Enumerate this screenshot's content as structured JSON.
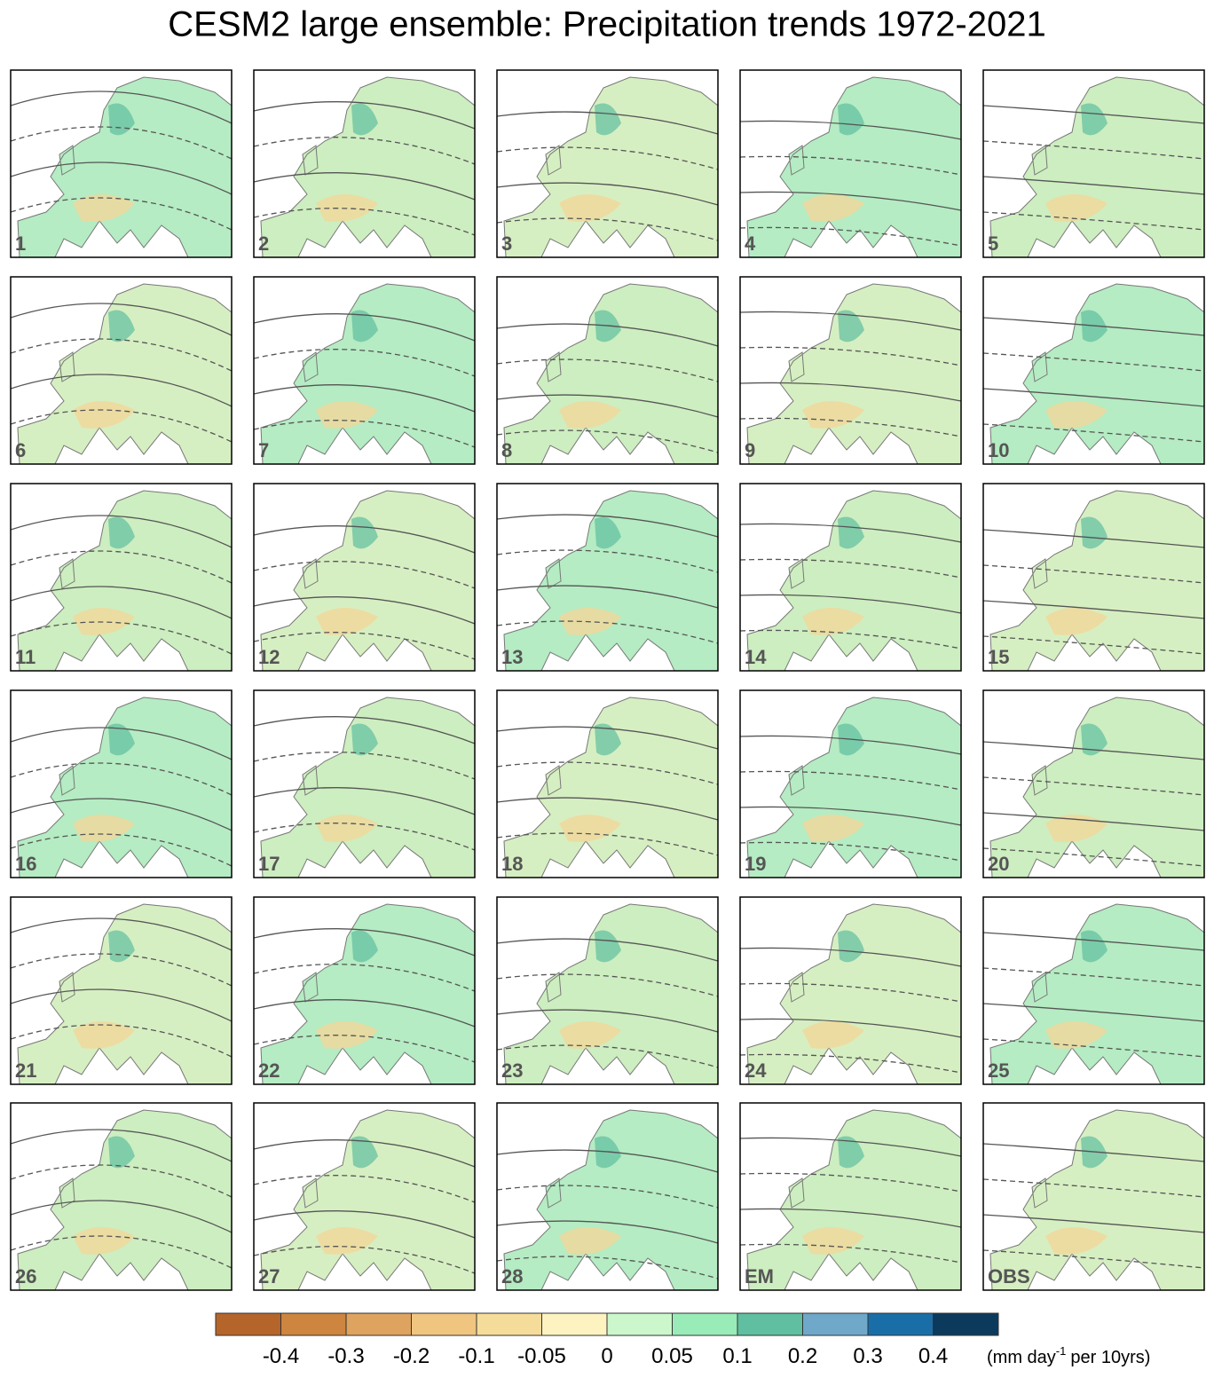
{
  "title": "CESM2 large ensemble: Precipitation trends 1972-2021",
  "panels": [
    "1",
    "2",
    "3",
    "4",
    "5",
    "6",
    "7",
    "8",
    "9",
    "10",
    "11",
    "12",
    "13",
    "14",
    "15",
    "16",
    "17",
    "18",
    "19",
    "20",
    "21",
    "22",
    "23",
    "24",
    "25",
    "26",
    "27",
    "28",
    "EM",
    "OBS"
  ],
  "colorbar": {
    "colors": [
      "#b5652a",
      "#cd8540",
      "#dea35f",
      "#efc57f",
      "#f5dc9a",
      "#fdf3c0",
      "#ccf7cc",
      "#99ebb8",
      "#5fbfa0",
      "#6fa8c9",
      "#1a6ea8",
      "#0b3a5c"
    ],
    "ticks": [
      -0.4,
      -0.3,
      -0.2,
      -0.1,
      -0.05,
      0,
      0.05,
      0.1,
      0.2,
      0.3,
      0.4
    ],
    "units": {
      "prefix": "(mm day",
      "exponent": "-1",
      "suffix": "per 10yrs)"
    }
  }
}
